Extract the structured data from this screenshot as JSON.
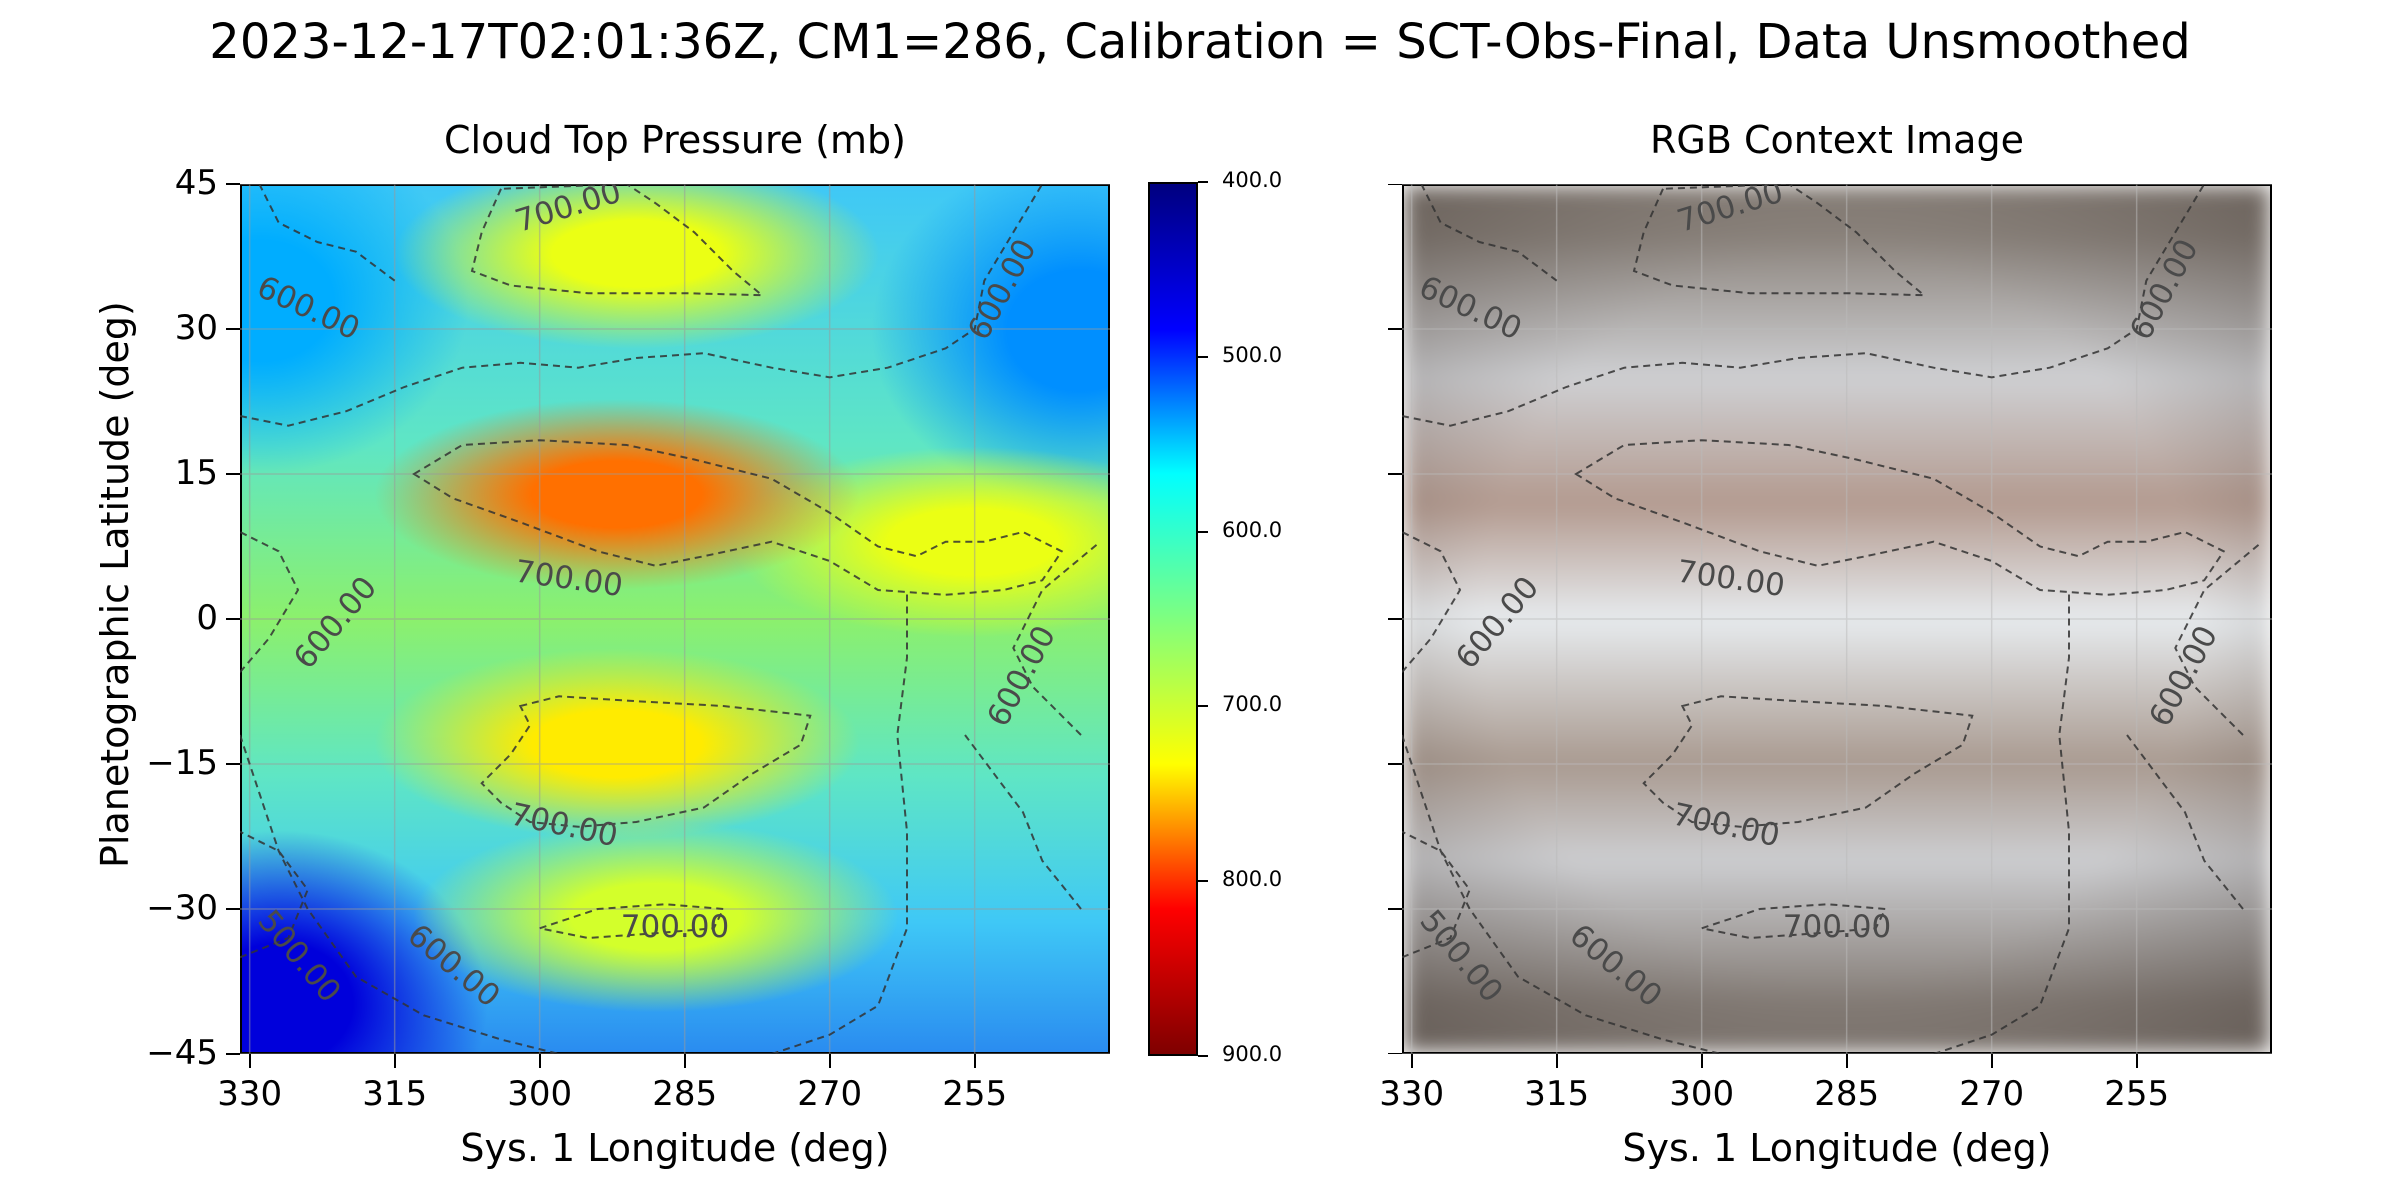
{
  "figure": {
    "suptitle": "2023-12-17T02:01:36Z, CM1=286, Calibration = SCT-Obs-Final, Data Unsmoothed"
  },
  "chart_data": [
    {
      "type": "heatmap",
      "title": "Cloud Top Pressure (mb)",
      "xlabel": "Sys. 1 Longitude (deg)",
      "ylabel": "Planetographic Latitude (deg)",
      "xlim": [
        331,
        241
      ],
      "ylim": [
        -45,
        45
      ],
      "x_inverted": true,
      "xticks": [
        330,
        315,
        300,
        285,
        270,
        255
      ],
      "xtick_labels": [
        "330",
        "315",
        "300",
        "285",
        "270",
        "255"
      ],
      "yticks": [
        45,
        30,
        15,
        0,
        -15,
        -30,
        -45
      ],
      "ytick_labels": [
        "45",
        "30",
        "15",
        "0",
        "−15",
        "−30",
        "−45"
      ],
      "grid": true,
      "colormap": "jet (reversed)",
      "colorbar": {
        "range": [
          400,
          900
        ],
        "ticks": [
          400,
          500,
          600,
          700,
          800,
          900
        ],
        "tick_labels": [
          "400.0",
          "500.0",
          "600.0",
          "700.0",
          "800.0",
          "900.0"
        ]
      },
      "contour_levels": [
        500,
        600,
        700
      ],
      "contour_labels": [
        {
          "text": "700.00",
          "lon": 297,
          "lat": 42.5
        },
        {
          "text": "600.00",
          "lon": 324,
          "lat": 32
        },
        {
          "text": "600.00",
          "lon": 252,
          "lat": 34
        },
        {
          "text": "700.00",
          "lon": 297,
          "lat": 4
        },
        {
          "text": "600.00",
          "lon": 321,
          "lat": -0.5
        },
        {
          "text": "600.00",
          "lon": 250,
          "lat": -6
        },
        {
          "text": "700.00",
          "lon": 297.5,
          "lat": -21.5
        },
        {
          "text": "700.00",
          "lon": 286,
          "lat": -32
        },
        {
          "text": "500.00",
          "lon": 325,
          "lat": -35
        },
        {
          "text": "600.00",
          "lon": 309,
          "lat": -36
        }
      ],
      "regions_mb": [
        {
          "name": "equatorial-high-pressure-band",
          "lat": 13,
          "lon": 292,
          "value": 780
        },
        {
          "name": "east-equatorial-patch",
          "lat": 8,
          "lon": 255,
          "value": 720
        },
        {
          "name": "north-high-pressure-patch",
          "lat": 38,
          "lon": 290,
          "value": 720
        },
        {
          "name": "south-high-pressure-band",
          "lat": -13,
          "lon": 292,
          "value": 740
        },
        {
          "name": "south-small-patch",
          "lat": -31,
          "lon": 288,
          "value": 705
        },
        {
          "name": "northwest-low-pressure-region",
          "lat": 33,
          "lon": 329,
          "value": 540
        },
        {
          "name": "northeast-low-pressure-region",
          "lat": 30,
          "lon": 244,
          "value": 530
        },
        {
          "name": "southwest-low-pressure-region",
          "lat": -40,
          "lon": 327,
          "value": 460
        }
      ]
    },
    {
      "type": "heatmap",
      "title": "RGB Context Image",
      "xlabel": "Sys. 1 Longitude (deg)",
      "xlim": [
        331,
        241
      ],
      "ylim": [
        -45,
        45
      ],
      "x_inverted": true,
      "xticks": [
        330,
        315,
        300,
        285,
        270,
        255
      ],
      "xtick_labels": [
        "330",
        "315",
        "300",
        "285",
        "270",
        "255"
      ],
      "yticks": [
        45,
        30,
        15,
        0,
        -15,
        -30,
        -45
      ],
      "grid": true,
      "overlay": "same contour lines as Cloud Top Pressure panel",
      "bands": [
        {
          "name": "north-polar-region",
          "lat": 40,
          "color": "#8b837c"
        },
        {
          "name": "north-zone",
          "lat": 25,
          "color": "#cfd0d3"
        },
        {
          "name": "north-equatorial-belt",
          "lat": 12,
          "color": "#b39a8f"
        },
        {
          "name": "equatorial-zone",
          "lat": 0,
          "color": "#e7ebee"
        },
        {
          "name": "south-equatorial-belt",
          "lat": -15,
          "color": "#a99a90"
        },
        {
          "name": "south-zone",
          "lat": -25,
          "color": "#cdced1"
        },
        {
          "name": "south-polar-region",
          "lat": -40,
          "color": "#847c76"
        }
      ]
    }
  ]
}
